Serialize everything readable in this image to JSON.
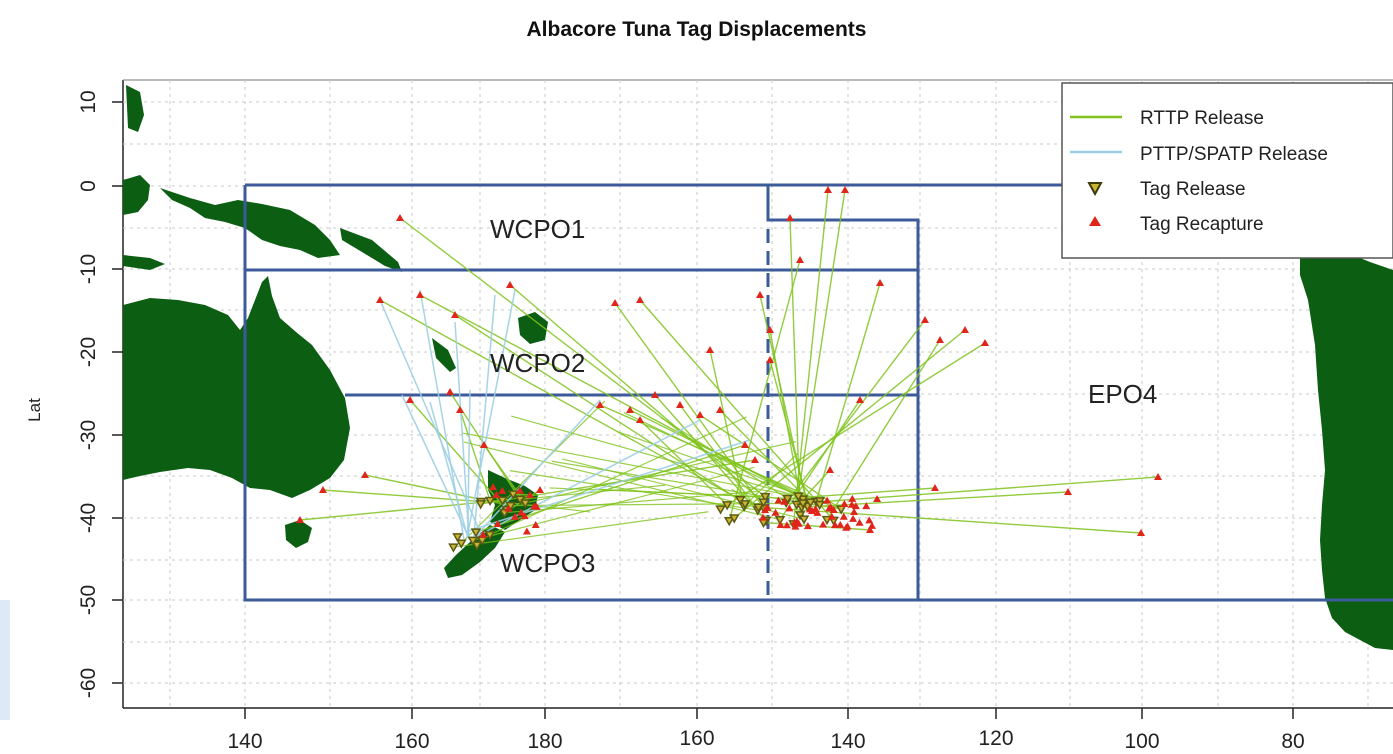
{
  "title": "Albacore Tuna Tag Displacements",
  "y_axis_label": "Lat",
  "colors": {
    "land": "#0b5e12",
    "region_border": "#3d5a9a",
    "rttp_line": "#7fc31c",
    "pttp_line": "#9ccfe3",
    "release_marker": "#5c5a14",
    "recapture_marker": "#e0251a",
    "grid": "#c9c9c9"
  },
  "x_tick_labels": [
    "140",
    "160",
    "180",
    "160",
    "140",
    "120",
    "100",
    "80"
  ],
  "y_tick_labels": [
    "10",
    "0",
    "-10",
    "-20",
    "-30",
    "-40",
    "-50",
    "-60"
  ],
  "legend": {
    "items": [
      {
        "label": "RTTP Release",
        "symbol": "line-green"
      },
      {
        "label": "PTTP/SPATP Release",
        "symbol": "line-blue"
      },
      {
        "label": "Tag Release",
        "symbol": "triangle-down"
      },
      {
        "label": "Tag Recapture",
        "symbol": "triangle-up"
      }
    ]
  },
  "regions": [
    {
      "label": "WCPO1"
    },
    {
      "label": "WCPO2"
    },
    {
      "label": "WCPO3"
    },
    {
      "label": "EPO4"
    }
  ]
}
